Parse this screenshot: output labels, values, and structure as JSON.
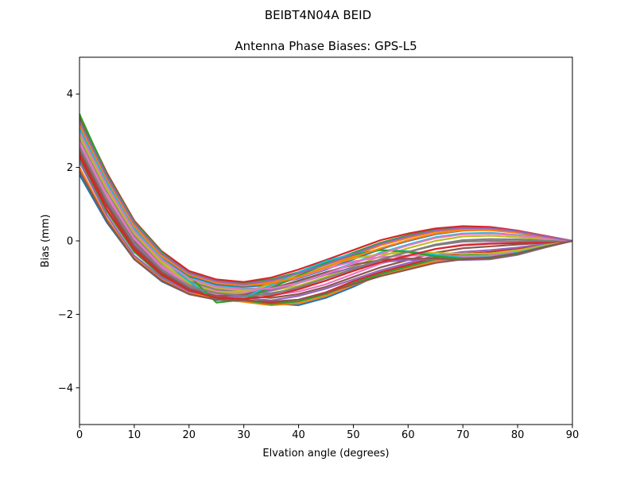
{
  "suptitle": "BEIBT4N04A       BEID",
  "chart_data": {
    "type": "line",
    "title": "Antenna Phase Biases: GPS-L5",
    "xlabel": "Elvation angle (degrees)",
    "ylabel": "Bias (mm)",
    "xlim": [
      0,
      90
    ],
    "ylim": [
      -5,
      5
    ],
    "xticks": [
      0,
      10,
      20,
      30,
      40,
      50,
      60,
      70,
      80,
      90
    ],
    "yticks": [
      -4,
      -2,
      0,
      2,
      4
    ],
    "ytick_labels": [
      "−4",
      "−2",
      "0",
      "2",
      "4"
    ],
    "grid": false,
    "legend": "none",
    "x": [
      0,
      5,
      10,
      15,
      20,
      25,
      30,
      35,
      40,
      45,
      50,
      55,
      60,
      65,
      70,
      75,
      80,
      85,
      90
    ],
    "series": [
      {
        "color": "#1f77b4",
        "values": [
          1.8,
          0.5,
          -0.5,
          -1.1,
          -1.45,
          -1.6,
          -1.65,
          -1.7,
          -1.75,
          -1.55,
          -1.25,
          -0.9,
          -0.7,
          -0.5,
          -0.5,
          -0.45,
          -0.35,
          -0.15,
          0.0
        ]
      },
      {
        "color": "#ff7f0e",
        "values": [
          2.0,
          0.6,
          -0.45,
          -1.05,
          -1.4,
          -1.58,
          -1.66,
          -1.75,
          -1.7,
          -1.5,
          -1.2,
          -0.95,
          -0.75,
          -0.55,
          -0.45,
          -0.4,
          -0.3,
          -0.15,
          0.0
        ]
      },
      {
        "color": "#2ca02c",
        "values": [
          2.2,
          0.8,
          -0.3,
          -0.95,
          -1.35,
          -1.55,
          -1.62,
          -1.72,
          -1.65,
          -1.45,
          -1.15,
          -0.9,
          -0.7,
          -0.5,
          -0.4,
          -0.35,
          -0.25,
          -0.12,
          0.0
        ]
      },
      {
        "color": "#d62728",
        "values": [
          2.35,
          0.95,
          -0.2,
          -0.9,
          -1.3,
          -1.5,
          -1.6,
          -1.68,
          -1.6,
          -1.4,
          -1.1,
          -0.85,
          -0.65,
          -0.45,
          -0.35,
          -0.3,
          -0.2,
          -0.1,
          0.0
        ]
      },
      {
        "color": "#9467bd",
        "values": [
          2.5,
          1.05,
          -0.1,
          -0.8,
          -1.25,
          -1.45,
          -1.55,
          -1.62,
          -1.5,
          -1.3,
          -1.05,
          -0.8,
          -0.6,
          -0.4,
          -0.3,
          -0.25,
          -0.18,
          -0.08,
          0.0
        ]
      },
      {
        "color": "#8c564b",
        "values": [
          2.6,
          1.15,
          0.0,
          -0.75,
          -1.2,
          -1.4,
          -1.5,
          -1.55,
          -1.45,
          -1.25,
          -0.98,
          -0.72,
          -0.52,
          -0.32,
          -0.2,
          -0.15,
          -0.1,
          -0.05,
          0.0
        ]
      },
      {
        "color": "#e377c2",
        "values": [
          2.7,
          1.25,
          0.1,
          -0.68,
          -1.15,
          -1.36,
          -1.45,
          -1.48,
          -1.38,
          -1.18,
          -0.9,
          -0.62,
          -0.42,
          -0.22,
          -0.1,
          -0.06,
          -0.04,
          -0.02,
          0.0
        ]
      },
      {
        "color": "#7f7f7f",
        "values": [
          2.8,
          1.35,
          0.15,
          -0.62,
          -1.1,
          -1.32,
          -1.4,
          -1.42,
          -1.3,
          -1.08,
          -0.8,
          -0.52,
          -0.3,
          -0.1,
          0.02,
          0.05,
          0.04,
          0.02,
          0.0
        ]
      },
      {
        "color": "#bcbd22",
        "values": [
          2.9,
          1.45,
          0.22,
          -0.55,
          -1.05,
          -1.28,
          -1.35,
          -1.36,
          -1.22,
          -0.98,
          -0.7,
          -0.42,
          -0.2,
          0.0,
          0.12,
          0.14,
          0.1,
          0.05,
          0.0
        ]
      },
      {
        "color": "#17becf",
        "values": [
          3.0,
          1.55,
          0.3,
          -0.5,
          -1.0,
          -1.22,
          -1.3,
          -1.28,
          -1.12,
          -0.88,
          -0.6,
          -0.32,
          -0.1,
          0.1,
          0.2,
          0.22,
          0.16,
          0.08,
          0.0
        ]
      },
      {
        "color": "#1f77b4",
        "values": [
          3.1,
          1.65,
          0.38,
          -0.44,
          -0.95,
          -1.18,
          -1.25,
          -1.2,
          -1.02,
          -0.78,
          -0.5,
          -0.22,
          0.0,
          0.18,
          0.28,
          0.3,
          0.22,
          0.1,
          0.0
        ]
      },
      {
        "color": "#ff7f0e",
        "values": [
          3.2,
          1.72,
          0.45,
          -0.38,
          -0.9,
          -1.12,
          -1.2,
          -1.12,
          -0.92,
          -0.68,
          -0.4,
          -0.12,
          0.08,
          0.25,
          0.33,
          0.33,
          0.25,
          0.12,
          0.0
        ]
      },
      {
        "color": "#2ca02c",
        "values": [
          3.3,
          1.78,
          0.5,
          -0.32,
          -0.86,
          -1.08,
          -1.15,
          -1.05,
          -0.85,
          -0.6,
          -0.32,
          -0.05,
          0.15,
          0.3,
          0.38,
          0.36,
          0.27,
          0.13,
          0.0
        ]
      },
      {
        "color": "#d62728",
        "values": [
          3.4,
          1.85,
          0.55,
          -0.28,
          -0.82,
          -1.05,
          -1.12,
          -1.0,
          -0.78,
          -0.52,
          -0.25,
          0.02,
          0.2,
          0.34,
          0.4,
          0.38,
          0.28,
          0.14,
          0.0
        ]
      },
      {
        "color": "#9467bd",
        "values": [
          2.15,
          0.7,
          -0.4,
          -1.0,
          -1.38,
          -1.5,
          -1.48,
          -1.35,
          -1.15,
          -0.92,
          -0.72,
          -0.58,
          -0.52,
          -0.5,
          -0.52,
          -0.5,
          -0.38,
          -0.18,
          0.0
        ]
      },
      {
        "color": "#8c564b",
        "values": [
          2.45,
          1.0,
          -0.15,
          -0.85,
          -1.3,
          -1.5,
          -1.46,
          -1.3,
          -1.08,
          -0.85,
          -0.65,
          -0.52,
          -0.48,
          -0.48,
          -0.5,
          -0.48,
          -0.36,
          -0.17,
          0.0
        ]
      },
      {
        "color": "#e377c2",
        "values": [
          2.65,
          1.2,
          0.05,
          -0.72,
          -1.22,
          -1.45,
          -1.42,
          -1.24,
          -1.0,
          -0.76,
          -0.56,
          -0.44,
          -0.4,
          -0.4,
          -0.42,
          -0.4,
          -0.3,
          -0.14,
          0.0
        ]
      },
      {
        "color": "#bcbd22",
        "values": [
          2.85,
          1.4,
          0.2,
          -0.6,
          -1.15,
          -1.4,
          -1.38,
          -1.18,
          -0.92,
          -0.68,
          -0.48,
          -0.36,
          -0.32,
          -0.33,
          -0.35,
          -0.34,
          -0.26,
          -0.12,
          0.0
        ]
      },
      {
        "color": "#17becf",
        "values": [
          3.05,
          1.6,
          0.35,
          -0.48,
          -1.1,
          -1.62,
          -1.55,
          -1.2,
          -0.85,
          -0.55,
          -0.35,
          -0.25,
          -0.28,
          -0.38,
          -0.46,
          -0.44,
          -0.32,
          -0.15,
          0.0
        ]
      },
      {
        "color": "#2ca02c",
        "values": [
          3.45,
          1.8,
          0.52,
          -0.3,
          -0.95,
          -1.68,
          -1.6,
          -1.28,
          -0.95,
          -0.62,
          -0.38,
          -0.25,
          -0.3,
          -0.42,
          -0.48,
          -0.46,
          -0.35,
          -0.17,
          0.0
        ]
      },
      {
        "color": "#d62728",
        "values": [
          2.3,
          0.85,
          -0.25,
          -0.92,
          -1.35,
          -1.55,
          -1.58,
          -1.5,
          -1.32,
          -1.08,
          -0.82,
          -0.58,
          -0.4,
          -0.22,
          -0.12,
          -0.08,
          -0.06,
          -0.03,
          0.0
        ]
      },
      {
        "color": "#7f7f7f",
        "values": [
          2.55,
          1.1,
          -0.05,
          -0.78,
          -1.24,
          -1.42,
          -1.5,
          -1.45,
          -1.26,
          -1.02,
          -0.76,
          -0.5,
          -0.3,
          -0.12,
          -0.02,
          0.0,
          -0.01,
          0.0,
          0.0
        ]
      },
      {
        "color": "#e377c2",
        "values": [
          2.95,
          1.5,
          0.26,
          -0.52,
          -1.02,
          -1.25,
          -1.32,
          -1.3,
          -1.15,
          -0.9,
          -0.62,
          -0.35,
          -0.12,
          0.08,
          0.18,
          0.2,
          0.15,
          0.07,
          0.0
        ]
      },
      {
        "color": "#ff7f0e",
        "values": [
          3.15,
          1.68,
          0.4,
          -0.42,
          -0.92,
          -1.15,
          -1.22,
          -1.16,
          -0.98,
          -0.72,
          -0.45,
          -0.2,
          0.02,
          0.2,
          0.29,
          0.29,
          0.22,
          0.11,
          0.0
        ]
      },
      {
        "color": "#9467bd",
        "values": [
          3.25,
          1.75,
          0.48,
          -0.35,
          -0.88,
          -1.1,
          -1.18,
          -1.08,
          -0.88,
          -0.64,
          -0.36,
          -0.08,
          0.12,
          0.28,
          0.35,
          0.34,
          0.26,
          0.12,
          0.0
        ]
      },
      {
        "color": "#8c564b",
        "values": [
          1.9,
          0.55,
          -0.5,
          -1.08,
          -1.45,
          -1.6,
          -1.62,
          -1.65,
          -1.6,
          -1.42,
          -1.18,
          -0.96,
          -0.78,
          -0.6,
          -0.5,
          -0.45,
          -0.34,
          -0.16,
          0.0
        ]
      }
    ]
  }
}
